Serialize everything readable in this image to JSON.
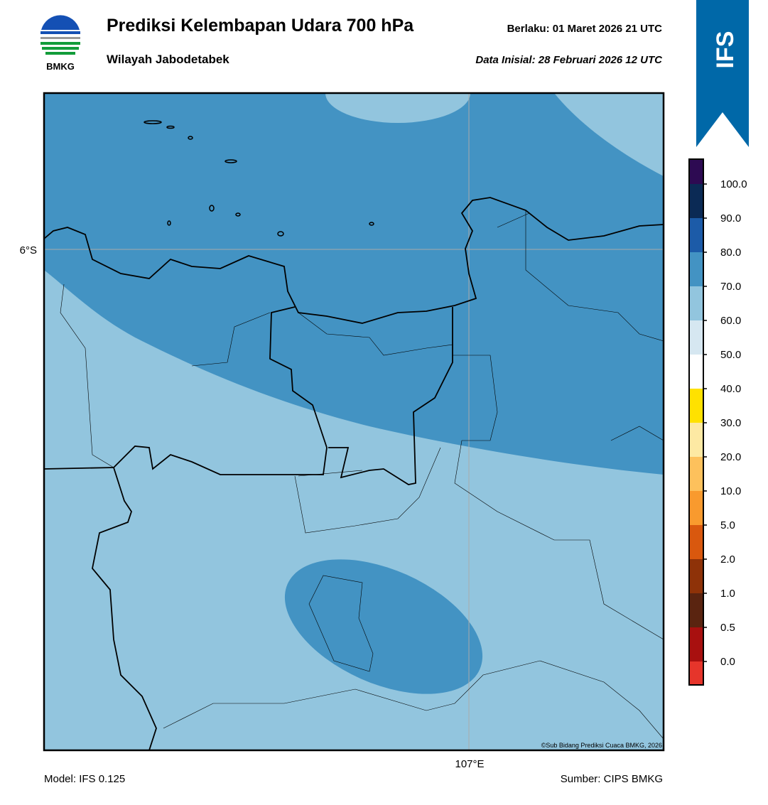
{
  "header": {
    "title": "Prediksi Kelembapan Udara 700 hPa",
    "subtitle": "Wilayah Jabodetabek",
    "valid": "Berlaku:  01 Maret 2026 21 UTC",
    "init": "Data Inisial:  28 Februari 2026 12 UTC",
    "logo_text": "BMKG",
    "badge": "IFS"
  },
  "map": {
    "lat_label": "6°S",
    "lon_label": "107°E",
    "credit": "©Sub Bidang Prediksi Cuaca BMKG, 2026"
  },
  "colorbar": {
    "labels": [
      "100.0",
      "90.0",
      "80.0",
      "70.0",
      "60.0",
      "50.0",
      "40.0",
      "30.0",
      "20.0",
      "10.0",
      "5.0",
      "2.0",
      "1.0",
      "0.5",
      "0.0"
    ],
    "colors": [
      "#2d0a52",
      "#0b2a55",
      "#1c5ba8",
      "#4393c3",
      "#92c5de",
      "#d6e7f1",
      "#ffffff",
      "#ffe100",
      "#fde9a3",
      "#fdc15c",
      "#f99a2e",
      "#d9580e",
      "#8e3208",
      "#5a2410",
      "#a8100f",
      "#e6352b"
    ]
  },
  "footer": {
    "model": "Model: IFS 0.125",
    "source": "Sumber: CIPS BMKG"
  }
}
